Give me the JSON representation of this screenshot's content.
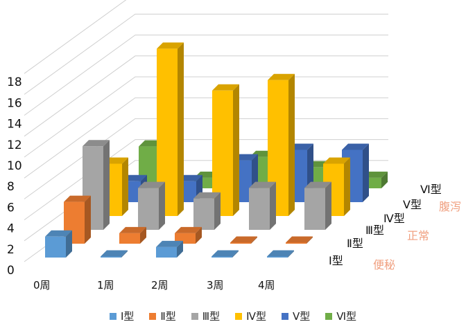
{
  "chart_data": {
    "type": "bar3d",
    "categories": [
      "0周",
      "1周",
      "2周",
      "3周",
      "4周"
    ],
    "series": [
      {
        "name": "Ⅰ型",
        "color": "#5b9bd5",
        "values": [
          2,
          0,
          1,
          0,
          0
        ]
      },
      {
        "name": "Ⅱ型",
        "color": "#ed7d31",
        "values": [
          4,
          1,
          1,
          0,
          0
        ]
      },
      {
        "name": "Ⅲ型",
        "color": "#a5a5a5",
        "values": [
          8,
          4,
          3,
          4,
          4
        ]
      },
      {
        "name": "Ⅳ型",
        "color": "#ffc000",
        "values": [
          5,
          16,
          12,
          13,
          5
        ]
      },
      {
        "name": "Ⅴ型",
        "color": "#4472c4",
        "values": [
          2,
          2,
          4,
          5,
          5
        ]
      },
      {
        "name": "Ⅵ型",
        "color": "#70ad47",
        "values": [
          4,
          1,
          3,
          2,
          1
        ]
      }
    ],
    "yticks": [
      0,
      2,
      4,
      6,
      8,
      10,
      12,
      14,
      16,
      18
    ],
    "ylim": [
      0,
      18
    ],
    "depth_groups": [
      {
        "label": "便秘",
        "color": "#f0a080"
      },
      {
        "label": "正常",
        "color": "#f0a080"
      },
      {
        "label": "腹泻",
        "color": "#f0a080"
      }
    ],
    "grid": true,
    "legend": "bottom"
  }
}
